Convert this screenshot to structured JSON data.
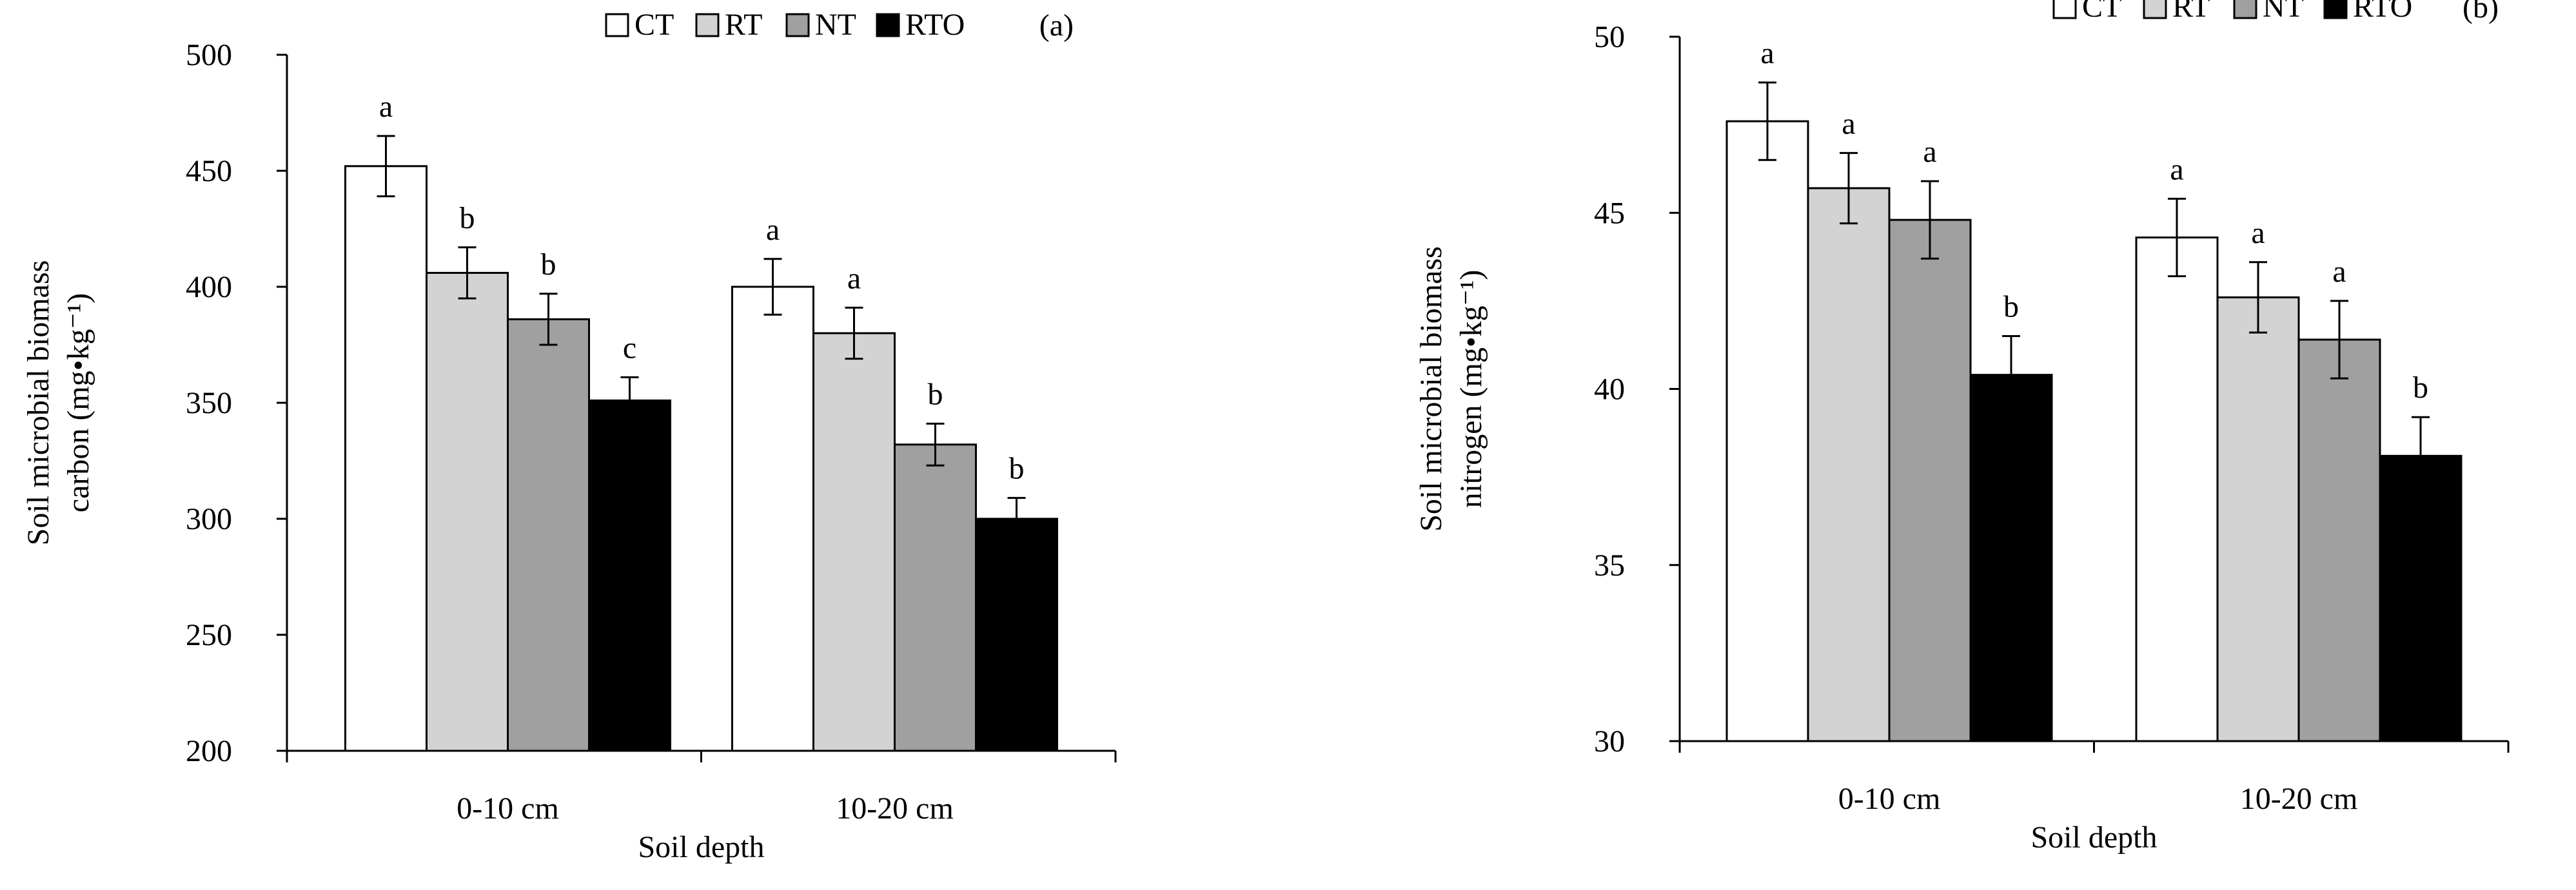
{
  "chart_data": [
    {
      "type": "bar",
      "panel_label": "(a)",
      "title": "",
      "categories": [
        "0-10 cm",
        "10-20 cm"
      ],
      "xlabel": "Soil depth",
      "ylabel_lines": [
        "Soil microbial biomass",
        "carbon (mg•kg⁻¹)"
      ],
      "ylim": [
        200,
        500
      ],
      "yticks": [
        200,
        250,
        300,
        350,
        400,
        450,
        500
      ],
      "legend_position": "top-center",
      "series": [
        {
          "name": "CT",
          "color": "#ffffff",
          "values": [
            452,
            400
          ],
          "errors": [
            13,
            12
          ],
          "letters": [
            "a",
            "a"
          ]
        },
        {
          "name": "RT",
          "color": "#d3d3d3",
          "values": [
            406,
            380
          ],
          "errors": [
            11,
            11
          ],
          "letters": [
            "b",
            "a"
          ]
        },
        {
          "name": "NT",
          "color": "#a0a0a0",
          "values": [
            386,
            332
          ],
          "errors": [
            11,
            9
          ],
          "letters": [
            "b",
            "b"
          ]
        },
        {
          "name": "RTO",
          "color": "#000000",
          "values": [
            351,
            300
          ],
          "errors": [
            10,
            9
          ],
          "letters": [
            "c",
            "b"
          ]
        }
      ]
    },
    {
      "type": "bar",
      "panel_label": "(b)",
      "title": "",
      "categories": [
        "0-10 cm",
        "10-20 cm"
      ],
      "xlabel": "Soil depth",
      "ylabel_lines": [
        "Soil microbial biomass",
        "nitrogen (mg•kg⁻¹)"
      ],
      "ylim": [
        30,
        50
      ],
      "yticks": [
        30,
        35,
        40,
        45,
        50
      ],
      "legend_position": "top-center",
      "series": [
        {
          "name": "CT",
          "color": "#ffffff",
          "values": [
            47.6,
            44.3
          ],
          "errors": [
            1.1,
            1.1
          ],
          "letters": [
            "a",
            "a"
          ]
        },
        {
          "name": "RT",
          "color": "#d3d3d3",
          "values": [
            45.7,
            42.6
          ],
          "errors": [
            1.0,
            1.0
          ],
          "letters": [
            "a",
            "a"
          ]
        },
        {
          "name": "NT",
          "color": "#a0a0a0",
          "values": [
            44.8,
            41.4
          ],
          "errors": [
            1.1,
            1.1
          ],
          "letters": [
            "a",
            "a"
          ]
        },
        {
          "name": "RTO",
          "color": "#000000",
          "values": [
            40.4,
            38.1
          ],
          "errors": [
            1.1,
            1.1
          ],
          "letters": [
            "b",
            "b"
          ]
        }
      ]
    }
  ]
}
